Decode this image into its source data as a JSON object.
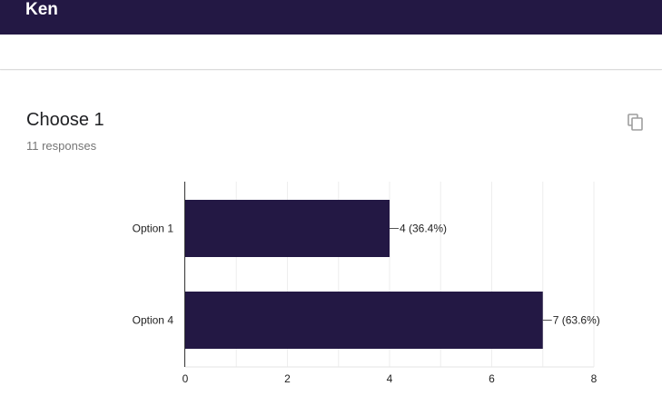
{
  "header": {
    "title": "Ken"
  },
  "question": {
    "title": "Choose 1",
    "responses": "11 responses"
  },
  "icons": {
    "copy": "copy-icon"
  },
  "colors": {
    "header_bg": "#231844",
    "bar": "#231844"
  },
  "chart_data": {
    "type": "bar",
    "orientation": "horizontal",
    "categories": [
      "Option 1",
      "Option 4"
    ],
    "values": [
      4,
      7
    ],
    "data_labels": [
      "4 (36.4%)",
      "7 (63.6%)"
    ],
    "xlim": [
      0,
      8
    ],
    "xticks": [
      "0",
      "2",
      "4",
      "6",
      "8"
    ],
    "grid": true
  }
}
